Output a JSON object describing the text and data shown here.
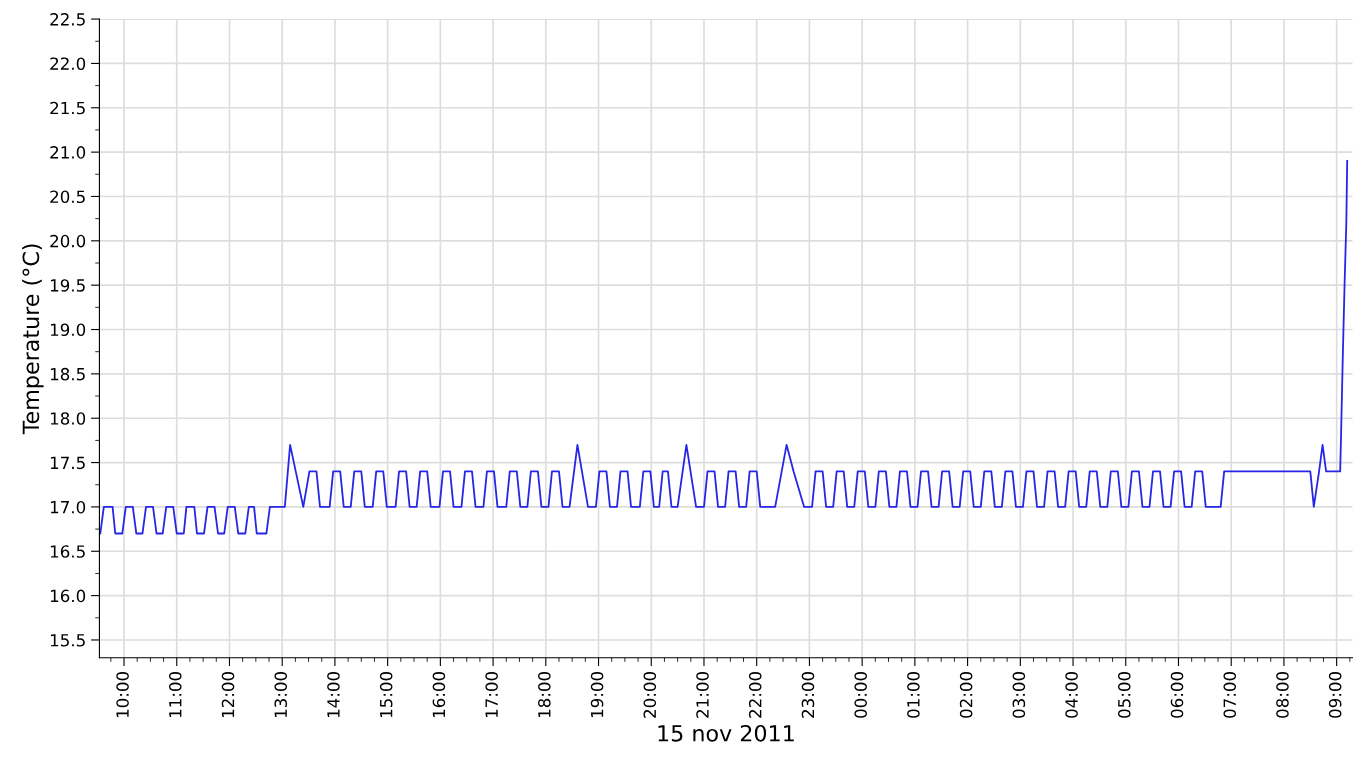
{
  "chart_data": {
    "type": "line",
    "xlabel": "15 nov 2011",
    "ylabel": "Temperature (°C)",
    "xlim": [
      "2011-11-15T09:32",
      "2011-11-16T09:18"
    ],
    "ylim": [
      15.3,
      22.5
    ],
    "xticks": [
      {
        "value": "2011-11-15T10:00",
        "label": "10:00"
      },
      {
        "value": "2011-11-15T11:00",
        "label": "11:00"
      },
      {
        "value": "2011-11-15T12:00",
        "label": "12:00"
      },
      {
        "value": "2011-11-15T13:00",
        "label": "13:00"
      },
      {
        "value": "2011-11-15T14:00",
        "label": "14:00"
      },
      {
        "value": "2011-11-15T15:00",
        "label": "15:00"
      },
      {
        "value": "2011-11-15T16:00",
        "label": "16:00"
      },
      {
        "value": "2011-11-15T17:00",
        "label": "17:00"
      },
      {
        "value": "2011-11-15T18:00",
        "label": "18:00"
      },
      {
        "value": "2011-11-15T19:00",
        "label": "19:00"
      },
      {
        "value": "2011-11-15T20:00",
        "label": "20:00"
      },
      {
        "value": "2011-11-15T21:00",
        "label": "21:00"
      },
      {
        "value": "2011-11-15T22:00",
        "label": "22:00"
      },
      {
        "value": "2011-11-15T23:00",
        "label": "23:00"
      },
      {
        "value": "2011-11-16T00:00",
        "label": "00:00"
      },
      {
        "value": "2011-11-16T01:00",
        "label": "01:00"
      },
      {
        "value": "2011-11-16T02:00",
        "label": "02:00"
      },
      {
        "value": "2011-11-16T03:00",
        "label": "03:00"
      },
      {
        "value": "2011-11-16T04:00",
        "label": "04:00"
      },
      {
        "value": "2011-11-16T05:00",
        "label": "05:00"
      },
      {
        "value": "2011-11-16T06:00",
        "label": "06:00"
      },
      {
        "value": "2011-11-16T07:00",
        "label": "07:00"
      },
      {
        "value": "2011-11-16T08:00",
        "label": "08:00"
      },
      {
        "value": "2011-11-16T09:00",
        "label": "09:00"
      }
    ],
    "yticks": [
      {
        "value": 15.5,
        "label": "15.5"
      },
      {
        "value": 16,
        "label": "16.0"
      },
      {
        "value": 16.5,
        "label": "16.5"
      },
      {
        "value": 17,
        "label": "17.0"
      },
      {
        "value": 17.5,
        "label": "17.5"
      },
      {
        "value": 18,
        "label": "18.0"
      },
      {
        "value": 18.5,
        "label": "18.5"
      },
      {
        "value": 19,
        "label": "19.0"
      },
      {
        "value": 19.5,
        "label": "19.5"
      },
      {
        "value": 20,
        "label": "20.0"
      },
      {
        "value": 20.5,
        "label": "20.5"
      },
      {
        "value": 21,
        "label": "21.0"
      },
      {
        "value": 21.5,
        "label": "21.5"
      },
      {
        "value": 22,
        "label": "22.0"
      },
      {
        "value": 22.5,
        "label": "22.5"
      }
    ],
    "grid": true,
    "marker": "none",
    "line_style": "solid",
    "series": [
      {
        "color": "#2626e6",
        "x": [
          "2011-11-15T09:33",
          "2011-11-15T09:37",
          "2011-11-15T09:47",
          "2011-11-15T09:50",
          "2011-11-15T09:58",
          "2011-11-15T10:02",
          "2011-11-15T10:10",
          "2011-11-15T10:14",
          "2011-11-15T10:21",
          "2011-11-15T10:25",
          "2011-11-15T10:33",
          "2011-11-15T10:37",
          "2011-11-15T10:44",
          "2011-11-15T10:48",
          "2011-11-15T10:56",
          "2011-11-15T11:00",
          "2011-11-15T11:08",
          "2011-11-15T11:11",
          "2011-11-15T11:20",
          "2011-11-15T11:23",
          "2011-11-15T11:31",
          "2011-11-15T11:35",
          "2011-11-15T11:43",
          "2011-11-15T11:47",
          "2011-11-15T11:54",
          "2011-11-15T11:58",
          "2011-11-15T12:06",
          "2011-11-15T12:10",
          "2011-11-15T12:18",
          "2011-11-15T12:22",
          "2011-11-15T12:28",
          "2011-11-15T12:31",
          "2011-11-15T12:42",
          "2011-11-15T12:46",
          "2011-11-15T13:03",
          "2011-11-15T13:09",
          "2011-11-15T13:24",
          "2011-11-15T13:31",
          "2011-11-15T13:39",
          "2011-11-15T13:43",
          "2011-11-15T13:54",
          "2011-11-15T13:58",
          "2011-11-15T14:06",
          "2011-11-15T14:10",
          "2011-11-15T14:18",
          "2011-11-15T14:22",
          "2011-11-15T14:30",
          "2011-11-15T14:34",
          "2011-11-15T14:43",
          "2011-11-15T14:47",
          "2011-11-15T14:55",
          "2011-11-15T14:59",
          "2011-11-15T15:09",
          "2011-11-15T15:13",
          "2011-11-15T15:21",
          "2011-11-15T15:25",
          "2011-11-15T15:33",
          "2011-11-15T15:37",
          "2011-11-15T15:45",
          "2011-11-15T15:49",
          "2011-11-15T15:59",
          "2011-11-15T16:03",
          "2011-11-15T16:11",
          "2011-11-15T16:15",
          "2011-11-15T16:24",
          "2011-11-15T16:28",
          "2011-11-15T16:36",
          "2011-11-15T16:40",
          "2011-11-15T16:49",
          "2011-11-15T16:53",
          "2011-11-15T17:01",
          "2011-11-15T17:05",
          "2011-11-15T17:15",
          "2011-11-15T17:19",
          "2011-11-15T17:27",
          "2011-11-15T17:31",
          "2011-11-15T17:39",
          "2011-11-15T17:43",
          "2011-11-15T17:51",
          "2011-11-15T17:55",
          "2011-11-15T18:03",
          "2011-11-15T18:07",
          "2011-11-15T18:15",
          "2011-11-15T18:19",
          "2011-11-15T18:27",
          "2011-11-15T18:36",
          "2011-11-15T18:48",
          "2011-11-15T18:57",
          "2011-11-15T19:01",
          "2011-11-15T19:09",
          "2011-11-15T19:13",
          "2011-11-15T19:21",
          "2011-11-15T19:25",
          "2011-11-15T19:33",
          "2011-11-15T19:37",
          "2011-11-15T19:47",
          "2011-11-15T19:51",
          "2011-11-15T19:59",
          "2011-11-15T20:03",
          "2011-11-15T20:09",
          "2011-11-15T20:13",
          "2011-11-15T20:19",
          "2011-11-15T20:23",
          "2011-11-15T20:30",
          "2011-11-15T20:40",
          "2011-11-15T20:51",
          "2011-11-15T21:00",
          "2011-11-15T21:04",
          "2011-11-15T21:12",
          "2011-11-15T21:16",
          "2011-11-15T21:24",
          "2011-11-15T21:28",
          "2011-11-15T21:36",
          "2011-11-15T21:40",
          "2011-11-15T21:48",
          "2011-11-15T21:52",
          "2011-11-15T22:00",
          "2011-11-15T22:04",
          "2011-11-15T22:21",
          "2011-11-15T22:34",
          "2011-11-15T22:42",
          "2011-11-15T22:54",
          "2011-11-15T23:03",
          "2011-11-15T23:07",
          "2011-11-15T23:15",
          "2011-11-15T23:19",
          "2011-11-15T23:27",
          "2011-11-15T23:31",
          "2011-11-15T23:39",
          "2011-11-15T23:43",
          "2011-11-15T23:51",
          "2011-11-15T23:55",
          "2011-11-16T00:03",
          "2011-11-16T00:07",
          "2011-11-16T00:15",
          "2011-11-16T00:19",
          "2011-11-16T00:27",
          "2011-11-16T00:31",
          "2011-11-16T00:39",
          "2011-11-16T00:43",
          "2011-11-16T00:51",
          "2011-11-16T00:55",
          "2011-11-16T01:03",
          "2011-11-16T01:07",
          "2011-11-16T01:15",
          "2011-11-16T01:19",
          "2011-11-16T01:27",
          "2011-11-16T01:31",
          "2011-11-16T01:39",
          "2011-11-16T01:43",
          "2011-11-16T01:51",
          "2011-11-16T01:55",
          "2011-11-16T02:03",
          "2011-11-16T02:07",
          "2011-11-16T02:15",
          "2011-11-16T02:19",
          "2011-11-16T02:27",
          "2011-11-16T02:31",
          "2011-11-16T02:39",
          "2011-11-16T02:43",
          "2011-11-16T02:51",
          "2011-11-16T02:55",
          "2011-11-16T03:03",
          "2011-11-16T03:07",
          "2011-11-16T03:15",
          "2011-11-16T03:19",
          "2011-11-16T03:27",
          "2011-11-16T03:31",
          "2011-11-16T03:39",
          "2011-11-16T03:43",
          "2011-11-16T03:51",
          "2011-11-16T03:55",
          "2011-11-16T04:03",
          "2011-11-16T04:07",
          "2011-11-16T04:15",
          "2011-11-16T04:19",
          "2011-11-16T04:27",
          "2011-11-16T04:31",
          "2011-11-16T04:39",
          "2011-11-16T04:43",
          "2011-11-16T04:51",
          "2011-11-16T04:55",
          "2011-11-16T05:03",
          "2011-11-16T05:07",
          "2011-11-16T05:15",
          "2011-11-16T05:19",
          "2011-11-16T05:27",
          "2011-11-16T05:31",
          "2011-11-16T05:39",
          "2011-11-16T05:43",
          "2011-11-16T05:51",
          "2011-11-16T05:55",
          "2011-11-16T06:03",
          "2011-11-16T06:07",
          "2011-11-16T06:15",
          "2011-11-16T06:19",
          "2011-11-16T06:27",
          "2011-11-16T06:31",
          "2011-11-16T06:48",
          "2011-11-16T06:52",
          "2011-11-16T08:30",
          "2011-11-16T08:34",
          "2011-11-16T08:40",
          "2011-11-16T08:44",
          "2011-11-16T08:48",
          "2011-11-16T09:04",
          "2011-11-16T09:05",
          "2011-11-16T09:07",
          "2011-11-16T09:09",
          "2011-11-16T09:11",
          "2011-11-16T09:12"
        ],
        "values": [
          16.7,
          17.0,
          17.0,
          16.7,
          16.7,
          17.0,
          17.0,
          16.7,
          16.7,
          17.0,
          17.0,
          16.7,
          16.7,
          17.0,
          17.0,
          16.7,
          16.7,
          17.0,
          17.0,
          16.7,
          16.7,
          17.0,
          17.0,
          16.7,
          16.7,
          17.0,
          17.0,
          16.7,
          16.7,
          17.0,
          17.0,
          16.7,
          16.7,
          17.0,
          17.0,
          17.7,
          17.0,
          17.4,
          17.4,
          17.0,
          17.0,
          17.4,
          17.4,
          17.0,
          17.0,
          17.4,
          17.4,
          17.0,
          17.0,
          17.4,
          17.4,
          17.0,
          17.0,
          17.4,
          17.4,
          17.0,
          17.0,
          17.4,
          17.4,
          17.0,
          17.0,
          17.4,
          17.4,
          17.0,
          17.0,
          17.4,
          17.4,
          17.0,
          17.0,
          17.4,
          17.4,
          17.0,
          17.0,
          17.4,
          17.4,
          17.0,
          17.0,
          17.4,
          17.4,
          17.0,
          17.0,
          17.4,
          17.4,
          17.0,
          17.0,
          17.7,
          17.0,
          17.0,
          17.4,
          17.4,
          17.0,
          17.0,
          17.4,
          17.4,
          17.0,
          17.0,
          17.4,
          17.4,
          17.0,
          17.0,
          17.4,
          17.4,
          17.0,
          17.0,
          17.7,
          17.0,
          17.0,
          17.4,
          17.4,
          17.0,
          17.0,
          17.4,
          17.4,
          17.0,
          17.0,
          17.4,
          17.4,
          17.0,
          17.0,
          17.7,
          17.4,
          17.0,
          17.0,
          17.4,
          17.4,
          17.0,
          17.0,
          17.4,
          17.4,
          17.0,
          17.0,
          17.4,
          17.4,
          17.0,
          17.0,
          17.4,
          17.4,
          17.0,
          17.0,
          17.4,
          17.4,
          17.0,
          17.0,
          17.4,
          17.4,
          17.0,
          17.0,
          17.4,
          17.4,
          17.0,
          17.0,
          17.4,
          17.4,
          17.0,
          17.0,
          17.4,
          17.4,
          17.0,
          17.0,
          17.4,
          17.4,
          17.0,
          17.0,
          17.4,
          17.4,
          17.0,
          17.0,
          17.4,
          17.4,
          17.0,
          17.0,
          17.4,
          17.4,
          17.0,
          17.0,
          17.4,
          17.4,
          17.0,
          17.0,
          17.4,
          17.4,
          17.0,
          17.0,
          17.4,
          17.4,
          17.0,
          17.0,
          17.4,
          17.4,
          17.0,
          17.0,
          17.4,
          17.4,
          17.0,
          17.0,
          17.4,
          17.4,
          17.0,
          17.0,
          17.4,
          17.4,
          17.0,
          17.4,
          17.7,
          17.4,
          17.4,
          17.8,
          18.7,
          19.5,
          20.2,
          20.9
        ]
      }
    ]
  }
}
